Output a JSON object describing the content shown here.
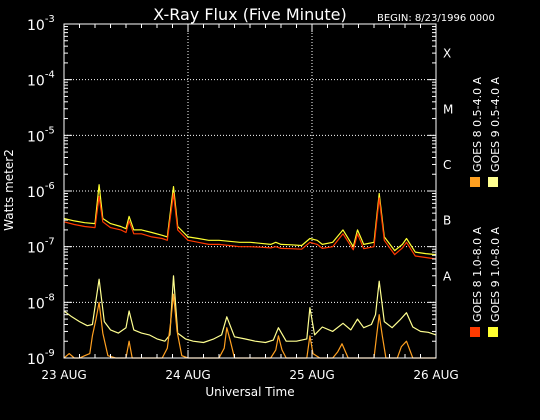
{
  "chart_data": {
    "type": "line",
    "title": "X-Ray Flux (Five Minute)",
    "begin_label": "BEGIN: 8/23/1996 0000",
    "ylabel": "Watts meter2",
    "xlabel": "Universal Time",
    "y_scale": "log",
    "ylim": [
      1e-09,
      0.001
    ],
    "y_ticks": [
      {
        "base": "10",
        "exp": "-9",
        "value": 1e-09
      },
      {
        "base": "10",
        "exp": "-8",
        "value": 1e-08
      },
      {
        "base": "10",
        "exp": "-7",
        "value": 1e-07
      },
      {
        "base": "10",
        "exp": "-6",
        "value": 1e-06
      },
      {
        "base": "10",
        "exp": "-5",
        "value": 1e-05
      },
      {
        "base": "10",
        "exp": "-4",
        "value": 0.0001
      },
      {
        "base": "10",
        "exp": "-3",
        "value": 0.001
      }
    ],
    "flare_classes": [
      {
        "label": "A",
        "value": 1e-08
      },
      {
        "label": "B",
        "value": 1e-07
      },
      {
        "label": "C",
        "value": 1e-06
      },
      {
        "label": "M",
        "value": 1e-05
      },
      {
        "label": "X",
        "value": 0.0001
      }
    ],
    "xlim": [
      0,
      72
    ],
    "x_unit": "hours since 8/23/1996 0000",
    "x_ticks": [
      {
        "label": "23 AUG",
        "value": 0
      },
      {
        "label": "24 AUG",
        "value": 24
      },
      {
        "label": "25 AUG",
        "value": 48
      },
      {
        "label": "26 AUG",
        "value": 72
      }
    ],
    "grid": {
      "horizontal": [
        1e-08,
        1e-07,
        1e-06,
        1e-05,
        0.0001
      ],
      "vertical": [
        24,
        48
      ]
    },
    "legend": [
      {
        "label": "GOES 8 1.0-8.0 A",
        "color": "#ff3a00"
      },
      {
        "label": "GOES 8 0.5-4.0 A",
        "color": "#ffa020"
      },
      {
        "label": "GOES 9 1.0-8.0 A",
        "color": "#ffff30"
      },
      {
        "label": "GOES 9 0.5-4.0 A",
        "color": "#ffff90"
      }
    ],
    "series": [
      {
        "name": "GOES 9 1.0-8.0 A",
        "color": "#ffff30",
        "x": [
          0,
          2,
          4,
          6,
          6.8,
          7.5,
          9,
          11,
          12,
          12.6,
          13.5,
          15,
          17,
          19,
          20,
          21.2,
          22,
          24,
          26,
          28,
          30,
          32,
          34,
          36,
          38,
          40,
          41,
          42,
          44,
          46,
          47.6,
          49,
          50,
          52,
          54,
          56,
          56.8,
          58,
          60,
          61,
          62,
          64,
          65.5,
          66.3,
          68,
          70,
          72
        ],
        "y": [
          3.2e-07,
          2.9e-07,
          2.7e-07,
          2.6e-07,
          1.3e-06,
          3.2e-07,
          2.6e-07,
          2.3e-07,
          2.1e-07,
          3.5e-07,
          2e-07,
          2e-07,
          1.8e-07,
          1.6e-07,
          1.5e-07,
          1.2e-06,
          2.3e-07,
          1.5e-07,
          1.4e-07,
          1.3e-07,
          1.3e-07,
          1.25e-07,
          1.2e-07,
          1.2e-07,
          1.15e-07,
          1.1e-07,
          1.2e-07,
          1.1e-07,
          1.08e-07,
          1.05e-07,
          1.4e-07,
          1.3e-07,
          1.1e-07,
          1.2e-07,
          2e-07,
          1e-07,
          2e-07,
          1.1e-07,
          1.2e-07,
          9e-07,
          1.5e-07,
          8.5e-08,
          1.1e-07,
          1.4e-07,
          8e-08,
          7.5e-08,
          7.2e-08
        ]
      },
      {
        "name": "GOES 8 1.0-8.0 A",
        "color": "#ff3a00",
        "x": [
          0,
          2,
          4,
          6,
          6.8,
          7.5,
          9,
          11,
          12,
          12.6,
          13.5,
          15,
          17,
          19,
          20,
          21.2,
          22,
          24,
          26,
          28,
          30,
          32,
          34,
          36,
          38,
          40,
          41,
          42,
          44,
          46,
          47.6,
          49,
          50,
          52,
          54,
          56,
          56.8,
          58,
          60,
          61,
          62,
          64,
          65.5,
          66.3,
          68,
          70,
          72
        ],
        "y": [
          2.8e-07,
          2.5e-07,
          2.3e-07,
          2.2e-07,
          8e-07,
          2.8e-07,
          2.2e-07,
          2e-07,
          1.8e-07,
          2.9e-07,
          1.7e-07,
          1.7e-07,
          1.5e-07,
          1.4e-07,
          1.3e-07,
          9e-07,
          2e-07,
          1.3e-07,
          1.2e-07,
          1.1e-07,
          1.1e-07,
          1.05e-07,
          1e-07,
          1e-07,
          9.8e-08,
          9.5e-08,
          1e-07,
          9.3e-08,
          9.2e-08,
          9e-08,
          1.2e-07,
          1.1e-07,
          9.3e-08,
          1e-07,
          1.7e-07,
          8.8e-08,
          1.7e-07,
          9.2e-08,
          1e-07,
          7.5e-07,
          1.3e-07,
          7.2e-08,
          9.5e-08,
          1.2e-07,
          6.8e-08,
          6.4e-08,
          6e-08
        ]
      },
      {
        "name": "GOES 9 0.5-4.0 A",
        "color": "#ffff90",
        "x": [
          0,
          1.5,
          3,
          4.5,
          5.5,
          6.8,
          7.8,
          9,
          10.5,
          12,
          12.6,
          13.5,
          15,
          16.5,
          18,
          19.5,
          20.5,
          21.2,
          22,
          23.5,
          25,
          27,
          29,
          30.5,
          31.5,
          33,
          35,
          37,
          39,
          40.5,
          41.5,
          43,
          45,
          47,
          47.6,
          48.5,
          50,
          52,
          54,
          55.5,
          56.8,
          58,
          59.5,
          60.3,
          61,
          62,
          63.5,
          65,
          66.3,
          67.5,
          69,
          70.5,
          72
        ],
        "y": [
          7e-09,
          5.5e-09,
          4.5e-09,
          3.8e-09,
          4e-09,
          2.6e-08,
          4.5e-09,
          3.2e-09,
          2.8e-09,
          3.5e-09,
          7e-09,
          3.2e-09,
          2.8e-09,
          2.6e-09,
          2.2e-09,
          2e-09,
          2.6e-09,
          3e-08,
          2.8e-09,
          2.2e-09,
          2e-09,
          1.9e-09,
          2.2e-09,
          2.6e-09,
          5.5e-09,
          2.4e-09,
          2.2e-09,
          2e-09,
          1.9e-09,
          2.1e-09,
          3.5e-09,
          2e-09,
          2e-09,
          2.2e-09,
          8e-09,
          2.6e-09,
          3.6e-09,
          3e-09,
          4.2e-09,
          3.2e-09,
          5e-09,
          3.5e-09,
          4e-09,
          6e-09,
          2.4e-08,
          4.5e-09,
          3.5e-09,
          4.8e-09,
          6.5e-09,
          3.6e-09,
          3e-09,
          2.9e-09,
          2.6e-09
        ]
      },
      {
        "name": "GOES 8 0.5-4.0 A",
        "color": "#ffa020",
        "x": [
          0,
          1,
          2,
          3,
          4,
          5,
          5.5,
          6.2,
          6.8,
          7.5,
          8.5,
          10,
          12,
          12.6,
          13.2,
          14.5,
          16,
          17.5,
          19,
          20,
          20.6,
          21.2,
          21.9,
          22.8,
          24,
          26,
          28,
          30,
          31,
          31.5,
          32.2,
          33,
          34.5,
          36,
          38,
          40,
          41,
          41.5,
          42.2,
          43,
          45,
          47,
          47.6,
          48.2,
          49.5,
          52,
          53,
          53.8,
          55,
          57,
          58.5,
          60,
          60.5,
          61,
          61.6,
          62.3,
          63.5,
          64.5,
          65.3,
          66.3,
          67.5,
          69,
          70.5,
          72
        ],
        "y": [
          1e-09,
          1.2e-09,
          1e-09,
          1e-09,
          1.1e-09,
          1.2e-09,
          2.5e-09,
          5e-09,
          1e-08,
          2.8e-09,
          1.1e-09,
          1e-09,
          1e-09,
          2e-09,
          1e-09,
          1e-09,
          1e-09,
          1e-09,
          1e-09,
          1.5e-09,
          4e-09,
          1.4e-08,
          3e-09,
          1.1e-09,
          1e-09,
          1e-09,
          1e-09,
          1e-09,
          1.5e-09,
          3.5e-09,
          2e-09,
          1e-09,
          1e-09,
          1e-09,
          1e-09,
          1e-09,
          1.4e-09,
          2.5e-09,
          1.4e-09,
          1e-09,
          1e-09,
          1e-09,
          2.5e-09,
          1.2e-09,
          1e-09,
          1e-09,
          1.3e-09,
          1.8e-09,
          1e-09,
          1e-09,
          1e-09,
          1e-09,
          2.5e-09,
          6e-09,
          2.5e-09,
          1e-09,
          1e-09,
          1e-09,
          1.6e-09,
          2e-09,
          1e-09,
          1e-09,
          1e-09,
          1e-09
        ]
      }
    ]
  }
}
